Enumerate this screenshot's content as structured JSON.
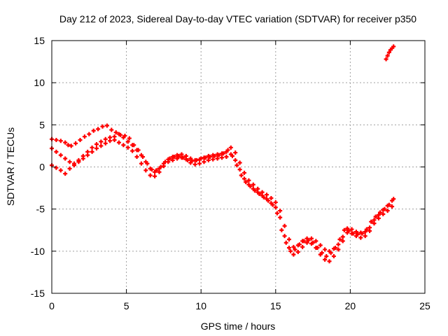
{
  "chart_data": {
    "type": "scatter",
    "title": "Day 212 of 2023, Sidereal Day-to-day VTEC variation (SDTVAR) for receiver p350",
    "xlabel": "GPS time / hours",
    "ylabel": "SDTVAR / TECUs",
    "xlim": [
      0,
      25
    ],
    "ylim": [
      -15,
      15
    ],
    "xticks": [
      0,
      5,
      10,
      15,
      20,
      25
    ],
    "yticks": [
      -15,
      -10,
      -5,
      0,
      5,
      10,
      15
    ],
    "grid": true,
    "marker": "plus",
    "color": "#ff0000",
    "series": [
      {
        "x": [
          0.0,
          0.3,
          0.6,
          0.9,
          1.1,
          1.3,
          1.6,
          1.9,
          2.2,
          2.5,
          2.8,
          3.1,
          3.4,
          3.7,
          4.0,
          4.3,
          4.6,
          4.9,
          5.2,
          5.5,
          5.8,
          6.1,
          6.4,
          6.7,
          7.0,
          7.3,
          7.6,
          7.9,
          8.2,
          8.5,
          8.8,
          9.1,
          9.4,
          9.7,
          10.0,
          10.3,
          10.6,
          10.9,
          11.2,
          11.5,
          11.8,
          12.1,
          12.4,
          12.7,
          13.0,
          13.3,
          13.6,
          13.9,
          14.2,
          14.5,
          14.8,
          15.1,
          15.4,
          15.7,
          16.0,
          16.3,
          16.6,
          16.9,
          17.2,
          17.5,
          17.8,
          18.1,
          18.4,
          18.7,
          19.0,
          19.3,
          19.6,
          19.9,
          20.2,
          20.5,
          20.8,
          21.1,
          21.4,
          21.7,
          22.0,
          22.3,
          22.6,
          22.9
        ],
        "y": [
          3.3,
          3.2,
          3.1,
          2.9,
          2.6,
          2.5,
          2.8,
          3.2,
          3.6,
          3.9,
          4.3,
          4.5,
          4.8,
          4.9,
          4.4,
          4.1,
          3.8,
          3.7,
          3.4,
          2.6,
          2.0,
          1.2,
          0.4,
          -0.3,
          -0.4,
          0.0,
          0.6,
          1.0,
          1.2,
          1.3,
          1.1,
          0.8,
          0.7,
          0.8,
          1.0,
          1.1,
          1.2,
          1.3,
          1.4,
          1.6,
          2.0,
          1.3,
          0.2,
          -1.0,
          -1.8,
          -2.3,
          -2.8,
          -3.2,
          -3.6,
          -4.0,
          -4.5,
          -5.5,
          -7.5,
          -9.0,
          -10.0,
          -9.8,
          -9.2,
          -8.8,
          -8.7,
          -9.0,
          -9.6,
          -10.2,
          -10.6,
          -10.2,
          -9.6,
          -8.6,
          -7.5,
          -7.6,
          -7.9,
          -8.0,
          -7.9,
          -7.4,
          -6.5,
          -5.9,
          -5.4,
          -5.0,
          -4.5,
          -3.8
        ]
      },
      {
        "x": [
          0.0,
          0.3,
          0.6,
          0.9,
          1.2,
          1.5,
          1.8,
          2.1,
          2.4,
          2.7,
          3.0,
          3.3,
          3.6,
          3.9,
          4.2,
          4.5,
          4.8,
          5.1,
          5.4,
          5.7,
          6.0,
          6.3,
          6.6,
          6.9,
          7.2,
          7.5,
          7.8,
          8.1,
          8.4,
          8.7,
          9.0,
          9.3,
          9.6,
          9.9,
          10.2,
          10.5,
          10.8,
          11.1,
          11.4,
          11.7,
          12.0,
          12.3,
          12.6,
          12.9,
          13.2,
          13.5,
          13.8,
          14.1,
          14.4,
          14.7,
          15.0,
          15.3,
          15.6,
          15.9,
          16.2,
          16.5,
          16.8,
          17.1,
          17.4,
          17.7,
          18.0,
          18.3,
          18.6,
          18.9,
          19.2,
          19.5,
          19.8,
          20.1,
          20.4,
          20.7,
          21.0,
          21.3,
          21.6,
          21.9,
          22.2,
          22.5,
          22.8
        ],
        "y": [
          2.2,
          1.8,
          1.4,
          1.0,
          0.6,
          0.4,
          0.8,
          1.3,
          1.8,
          2.3,
          2.7,
          3.0,
          3.3,
          3.5,
          3.2,
          2.9,
          2.6,
          2.3,
          1.9,
          1.2,
          0.4,
          -0.4,
          -1.0,
          -1.1,
          -0.6,
          0.1,
          0.6,
          0.8,
          1.0,
          1.1,
          0.9,
          0.5,
          0.3,
          0.4,
          0.6,
          0.8,
          0.9,
          1.0,
          1.1,
          1.2,
          1.5,
          0.8,
          -0.3,
          -1.4,
          -2.1,
          -2.6,
          -3.0,
          -3.4,
          -3.8,
          -4.3,
          -4.8,
          -6.0,
          -8.2,
          -9.6,
          -10.4,
          -10.1,
          -9.5,
          -9.0,
          -9.1,
          -9.6,
          -10.4,
          -11.0,
          -11.2,
          -10.6,
          -9.8,
          -8.8,
          -7.8,
          -7.9,
          -8.2,
          -8.4,
          -8.2,
          -7.6,
          -6.7,
          -6.1,
          -5.6,
          -5.2,
          -4.7
        ]
      },
      {
        "x": [
          0.0,
          0.3,
          0.6,
          0.9,
          1.2,
          1.5,
          1.8,
          2.1,
          2.4,
          2.7,
          3.0,
          3.3,
          3.6,
          3.9,
          4.2,
          4.5,
          4.8,
          5.1,
          5.4,
          5.7,
          6.0,
          6.3,
          6.6,
          6.9,
          7.2,
          7.5,
          7.8,
          8.1,
          8.4,
          8.7,
          9.0,
          9.3,
          9.6,
          9.9,
          10.2,
          10.5,
          10.8,
          11.1,
          11.4,
          11.7,
          12.0,
          12.3,
          12.6,
          12.9,
          13.2,
          13.5,
          13.8,
          14.1,
          14.4,
          14.7,
          15.0,
          15.3,
          15.6,
          15.9,
          16.2,
          16.5,
          16.8,
          17.1,
          17.4,
          17.7,
          18.0,
          18.3,
          18.6,
          18.9,
          19.2,
          19.5,
          19.8,
          20.1,
          20.4,
          20.7,
          21.0,
          21.3,
          21.6,
          21.9,
          22.2,
          22.5,
          22.8
        ],
        "y": [
          0.2,
          -0.1,
          -0.4,
          -0.8,
          -0.2,
          0.2,
          0.6,
          1.0,
          1.4,
          1.8,
          2.2,
          2.5,
          2.8,
          3.1,
          3.6,
          3.9,
          3.5,
          3.0,
          2.6,
          2.0,
          1.4,
          0.6,
          -0.2,
          -0.6,
          -0.2,
          0.4,
          0.9,
          1.2,
          1.4,
          1.5,
          1.3,
          1.0,
          0.8,
          0.9,
          1.1,
          1.3,
          1.4,
          1.5,
          1.6,
          1.8,
          2.3,
          1.7,
          0.5,
          -0.7,
          -1.6,
          -2.1,
          -2.6,
          -3.0,
          -3.3,
          -3.7,
          -4.2,
          -5.2,
          -7.0,
          -8.6,
          -9.5,
          -9.3,
          -8.8,
          -8.5,
          -8.5,
          -8.8,
          -9.3,
          -9.8,
          -10.0,
          -9.7,
          -9.2,
          -8.3,
          -7.3,
          -7.4,
          -7.7,
          -7.8,
          -7.7,
          -7.2,
          -6.3,
          -5.7,
          -5.1,
          -4.6,
          -4.0
        ]
      },
      {
        "x": [
          22.4,
          22.5,
          22.6,
          22.7,
          22.8,
          22.9
        ],
        "y": [
          12.8,
          13.2,
          13.6,
          13.9,
          14.1,
          14.3
        ]
      }
    ]
  }
}
